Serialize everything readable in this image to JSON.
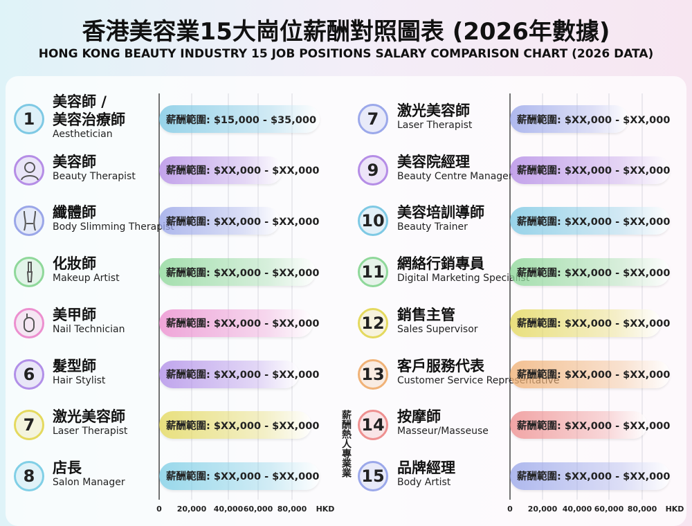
{
  "header": {
    "title": "香港美容業15大崗位薪酬對照圖表 (2026年數據)",
    "subtitle": "HONG KONG BEAUTY INDUSTRY 15 JOB POSITIONS SALARY COMPARISON CHART (2026 DATA)"
  },
  "left_panel": {
    "rows": [
      {
        "number": "1",
        "name": "美容師 /\n美容治療師",
        "english": "Aesthetician",
        "salary": "薪酬範圍: $15,000 - $35,000"
      },
      {
        "name": "美容師",
        "english": "Beauty Therapist",
        "salary": "薪酬範圍: $XX,000 - $XX,000"
      },
      {
        "name": "纖體師",
        "english": "Body Slimming Therapist",
        "salary": "薪酬範圍: $XX,000 - $XX,000"
      },
      {
        "name": "化妝師",
        "english": "Makeup Artist",
        "salary": "薪酬範圍: $XX,000 - $XX,000"
      },
      {
        "name": "美甲師",
        "english": "Nail Technician",
        "salary": "薪酬範圍: $XX,000 - $XX,000"
      },
      {
        "number": "6",
        "name": "髮型師",
        "english": "Hair Stylist",
        "salary": "薪酬範圍: $XX,000 - $XX,000"
      },
      {
        "number": "7",
        "name": "激光美容師",
        "english": "Laser Therapist",
        "salary": "薪酬範圍: $XX,000 - $XX,000"
      },
      {
        "number": "8",
        "name": "店長",
        "english": "Salon Manager",
        "salary": "薪酬範圍: $XX,000 - $XX,000"
      }
    ],
    "axis": [
      "0",
      "20,000",
      "40,000",
      "60,000",
      "80,000",
      "HKD"
    ]
  },
  "right_panel": {
    "rows": [
      {
        "number": "7",
        "name": "激光美容師",
        "english": "Laser Therapist",
        "salary": "薪酬範圍: $XX,000 - $XX,000"
      },
      {
        "number": "9",
        "name": "美容院經理",
        "english": "Beauty Centre Manager",
        "salary": "薪酬範圍: $XX,000 - $XX,000"
      },
      {
        "number": "10",
        "name": "美容培訓導師",
        "english": "Beauty Trainer",
        "salary": "薪酬範圍: $XX,000 - $XX,000"
      },
      {
        "number": "11",
        "name": "網絡行銷專員",
        "english": "Digital Marketing Specialist",
        "salary": "薪酬範圍: $XX,000 - $XX,000"
      },
      {
        "number": "12",
        "name": "銷售主管",
        "english": "Sales Supervisor",
        "salary": "薪酬範圍: $XX,000 - $XX,000"
      },
      {
        "number": "13",
        "name": "客戶服務代表",
        "english": "Customer Service Representative",
        "salary": "薪酬範圍: $XX,000 - $XX,000"
      },
      {
        "number": "14",
        "name": "按摩師",
        "english": "Masseur/Masseuse",
        "salary": "薪酬範圍: $XX,000 - $XX,000"
      },
      {
        "number": "15",
        "name": "品牌經理",
        "english": "Body Artist",
        "salary": "薪酬範圍: $XX,000 - $XX,000"
      }
    ],
    "axis": [
      "0",
      "20,000",
      "40,000",
      "60,000",
      "80,000",
      "HKD"
    ]
  },
  "side_note": "薪酬熱人專業業"
}
